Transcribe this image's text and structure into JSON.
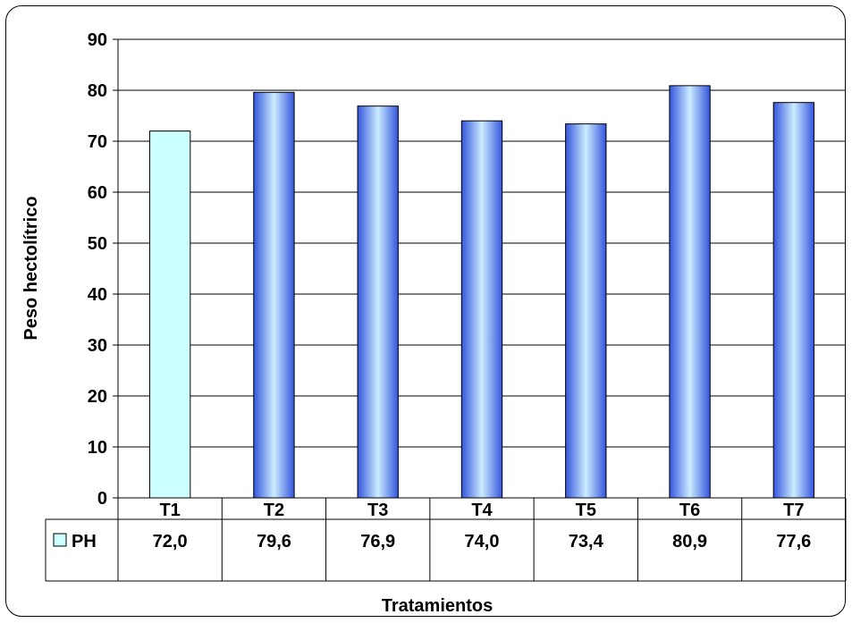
{
  "chart_data": {
    "type": "bar",
    "categories": [
      "T1",
      "T2",
      "T3",
      "T4",
      "T5",
      "T6",
      "T7"
    ],
    "series": [
      {
        "name": "PH",
        "values": [
          72.0,
          79.6,
          76.9,
          74.0,
          73.4,
          80.9,
          77.6
        ]
      }
    ],
    "value_labels": [
      "72,0",
      "79,6",
      "76,9",
      "74,0",
      "73,4",
      "80,9",
      "77,6"
    ],
    "ylabel": "Peso hectolítrico",
    "xlabel": "Tratamientos",
    "ylim": [
      0,
      90
    ],
    "yticks": [
      "0",
      "10",
      "20",
      "30",
      "40",
      "50",
      "60",
      "70",
      "80",
      "90"
    ],
    "grid": true,
    "legend": "data-table",
    "highlight_category": "T1",
    "colors": {
      "highlight_fill": "#ccffff",
      "bar_dark": "#3355dd",
      "bar_light": "#ccecff",
      "legend_key": "#ccffff"
    }
  }
}
